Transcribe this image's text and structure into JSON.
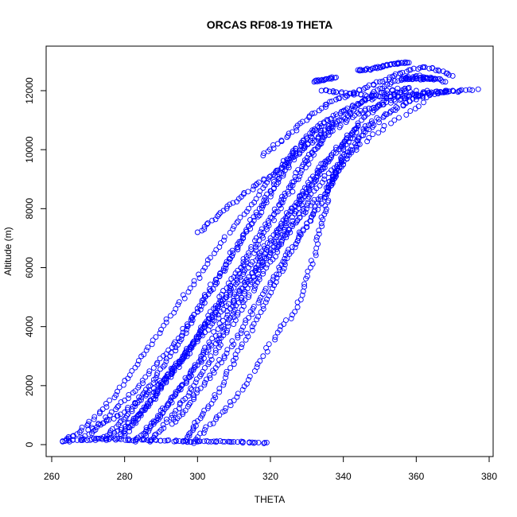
{
  "chart_data": {
    "type": "scatter",
    "title": "ORCAS RF08-19 THETA",
    "xlabel": "THETA",
    "ylabel": "Altitude (m)",
    "xlim": [
      260,
      380
    ],
    "ylim": [
      0,
      13000
    ],
    "xticks": [
      260,
      280,
      300,
      320,
      340,
      360,
      380
    ],
    "yticks": [
      0,
      2000,
      4000,
      6000,
      8000,
      10000,
      12000
    ],
    "marker": "open-circle",
    "color": "#0000ff",
    "grid": false,
    "legend": "none",
    "series": [
      {
        "x": [
          263,
          266,
          270,
          274,
          278,
          282,
          286,
          290,
          294,
          298,
          302,
          306,
          310,
          314,
          318,
          322,
          326,
          330,
          334,
          340,
          346,
          352,
          358
        ],
        "y": [
          100,
          300,
          700,
          1200,
          1800,
          2500,
          3200,
          3900,
          4600,
          5300,
          6000,
          6700,
          7400,
          8000,
          8700,
          9300,
          9900,
          10400,
          10800,
          11300,
          11700,
          12000,
          12100
        ]
      },
      {
        "x": [
          268,
          272,
          276,
          280,
          284,
          288,
          292,
          296,
          299,
          302,
          305,
          308,
          311,
          314,
          317,
          320,
          323,
          326,
          329,
          333,
          338,
          345,
          352,
          360
        ],
        "y": [
          150,
          500,
          1000,
          1500,
          2000,
          2600,
          3200,
          3800,
          4400,
          5000,
          5600,
          6200,
          6800,
          7400,
          8000,
          8600,
          9200,
          9800,
          10300,
          10800,
          11200,
          11600,
          11900,
          12000
        ]
      },
      {
        "x": [
          272,
          276,
          279,
          282,
          285,
          288,
          291,
          294,
          297,
          300,
          303,
          306,
          309,
          312,
          315,
          318,
          321,
          324,
          327,
          331,
          336,
          342,
          350,
          358,
          366,
          372
        ],
        "y": [
          150,
          400,
          800,
          1200,
          1700,
          2200,
          2700,
          3300,
          3900,
          4500,
          5100,
          5700,
          6300,
          6900,
          7500,
          8100,
          8700,
          9300,
          9800,
          10300,
          10800,
          11200,
          11500,
          11800,
          11900,
          12000
        ]
      },
      {
        "x": [
          275,
          279,
          283,
          287,
          290,
          293,
          296,
          299,
          302,
          305,
          308,
          311,
          314,
          317,
          320,
          323,
          326,
          329,
          332,
          336,
          341,
          347,
          354,
          362,
          370,
          377
        ],
        "y": [
          150,
          500,
          900,
          1400,
          1900,
          2400,
          2900,
          3500,
          4100,
          4700,
          5300,
          5900,
          6500,
          7100,
          7700,
          8300,
          8900,
          9500,
          10000,
          10500,
          11000,
          11400,
          11700,
          11900,
          12000,
          12050
        ]
      },
      {
        "x": [
          283,
          286,
          289,
          292,
          295,
          298,
          301,
          304,
          307,
          310,
          313,
          316,
          319,
          322,
          325,
          328,
          331,
          335,
          340,
          346,
          353,
          360,
          368
        ],
        "y": [
          100,
          500,
          900,
          1400,
          1900,
          2400,
          3000,
          3600,
          4200,
          4800,
          5400,
          6000,
          6600,
          7200,
          7800,
          8400,
          9000,
          9600,
          10200,
          10800,
          11300,
          11700,
          12000
        ]
      },
      {
        "x": [
          287,
          290,
          293,
          296,
          299,
          302,
          305,
          308,
          311,
          314,
          317,
          320,
          323,
          326,
          329,
          332,
          336,
          341,
          347,
          354,
          362
        ],
        "y": [
          100,
          500,
          1000,
          1500,
          2000,
          2600,
          3200,
          3800,
          4400,
          5000,
          5600,
          6200,
          6800,
          7400,
          8000,
          8600,
          9200,
          9800,
          10400,
          11000,
          11600
        ]
      },
      {
        "x": [
          296,
          298,
          300,
          303,
          306,
          309,
          312,
          315,
          318,
          321,
          324,
          327,
          330,
          333,
          336,
          339,
          342,
          346,
          351,
          357,
          363
        ],
        "y": [
          100,
          400,
          800,
          1300,
          1900,
          2600,
          3300,
          4000,
          4700,
          5400,
          6100,
          6800,
          7500,
          8200,
          8800,
          9400,
          10000,
          10600,
          11100,
          11600,
          12000
        ]
      },
      {
        "x": [
          299,
          302,
          306,
          310,
          314,
          318,
          322,
          326,
          329,
          331,
          333,
          334,
          335,
          336,
          337,
          338,
          339,
          340,
          342,
          345,
          349,
          353,
          358
        ],
        "y": [
          50,
          500,
          1000,
          1500,
          2200,
          3000,
          3800,
          4400,
          5200,
          6000,
          6800,
          7500,
          8100,
          8700,
          9000,
          9200,
          9500,
          10000,
          10500,
          11000,
          11400,
          11800,
          12100
        ]
      },
      {
        "x": [
          280,
          283,
          286,
          289,
          292,
          295,
          298,
          301,
          304,
          307,
          310,
          313,
          316,
          319,
          322,
          325,
          328,
          331,
          334,
          337
        ],
        "y": [
          300,
          800,
          1300,
          1800,
          2300,
          2800,
          3300,
          3800,
          4300,
          4900,
          5500,
          6100,
          6700,
          7300,
          7900,
          8500,
          9100,
          9700,
          10300,
          10900
        ]
      },
      {
        "x": [
          285,
          288,
          291,
          294,
          297,
          300,
          303,
          306,
          309,
          312,
          315,
          318,
          321,
          324,
          327,
          330,
          333,
          336
        ],
        "y": [
          200,
          700,
          1200,
          1700,
          2200,
          2700,
          3200,
          3700,
          4300,
          4900,
          5500,
          6100,
          6700,
          7300,
          7900,
          8500,
          9100,
          9700
        ]
      },
      {
        "x": [
          270,
          275,
          280,
          284,
          288,
          292,
          296,
          300,
          304,
          308,
          312,
          316,
          320,
          324,
          328,
          332
        ],
        "y": [
          500,
          800,
          1100,
          1500,
          1900,
          2400,
          2900,
          3500,
          4100,
          4700,
          5300,
          5900,
          6500,
          7100,
          7700,
          8300
        ]
      },
      {
        "x": [
          278,
          281,
          284,
          287,
          290,
          293,
          296,
          299,
          302,
          305,
          308,
          311,
          314,
          317,
          320,
          323,
          326,
          329,
          332,
          335,
          338,
          341,
          344
        ],
        "y": [
          200,
          600,
          1000,
          1500,
          2000,
          2500,
          3000,
          3500,
          4000,
          4500,
          5000,
          5500,
          6000,
          6500,
          7000,
          7500,
          8000,
          8500,
          9000,
          9500,
          10000,
          10400,
          10800
        ]
      },
      {
        "x": [
          293,
          296,
          299,
          302,
          305,
          308,
          311,
          314,
          317,
          320,
          323,
          326,
          329,
          332,
          335,
          338,
          341,
          344,
          348
        ],
        "y": [
          700,
          1100,
          1600,
          2100,
          2600,
          3100,
          3700,
          4300,
          4900,
          5500,
          6100,
          6700,
          7300,
          7900,
          8500,
          9100,
          9700,
          10300,
          10900
        ]
      },
      {
        "x": [
          263,
          267,
          271,
          275,
          279,
          283,
          287,
          291,
          295,
          299,
          303,
          307,
          311,
          315,
          319
        ],
        "y": [
          120,
          150,
          180,
          200,
          180,
          150,
          140,
          130,
          120,
          110,
          100,
          100,
          90,
          80,
          70
        ]
      },
      {
        "x": [
          300,
          304,
          308,
          312,
          316,
          320,
          324,
          328,
          332,
          336,
          340,
          344,
          348,
          352,
          356,
          360,
          364,
          368
        ],
        "y": [
          7200,
          7600,
          8000,
          8400,
          8800,
          9100,
          9500,
          9900,
          10300,
          10700,
          11100,
          11500,
          11900,
          12200,
          12400,
          12500,
          12450,
          12300
        ]
      },
      {
        "x": [
          318,
          322,
          326,
          330,
          334,
          338,
          342,
          346,
          350,
          354,
          358,
          362,
          366,
          370
        ],
        "y": [
          9800,
          10200,
          10600,
          11000,
          11400,
          11700,
          11900,
          12100,
          12300,
          12500,
          12700,
          12800,
          12700,
          12500
        ]
      },
      {
        "x": [
          332,
          334,
          336,
          338
        ],
        "y": [
          12300,
          12350,
          12400,
          12450
        ]
      },
      {
        "x": [
          344,
          346,
          348,
          350,
          352,
          354,
          356,
          358
        ],
        "y": [
          12700,
          12700,
          12750,
          12800,
          12850,
          12900,
          12950,
          12950
        ]
      },
      {
        "x": [
          356,
          358,
          360,
          362,
          364,
          366
        ],
        "y": [
          12400,
          12400,
          12400,
          12400,
          12400,
          12400
        ]
      },
      {
        "x": [
          334,
          338,
          342,
          346,
          350,
          354,
          358,
          362,
          366,
          370
        ],
        "y": [
          12000,
          11950,
          11900,
          11850,
          11800,
          11800,
          11850,
          11900,
          11950,
          12000
        ]
      }
    ]
  }
}
